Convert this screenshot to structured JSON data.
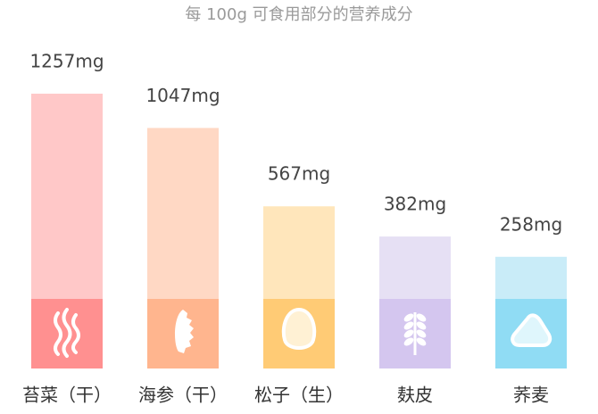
{
  "chart_data": {
    "type": "bar",
    "title": "每 100g 可食用部分的营养成分",
    "categories": [
      "苔菜（干）",
      "海参（干）",
      "松子（生）",
      "麸皮",
      "荞麦"
    ],
    "values": [
      1257,
      1047,
      567,
      382,
      258
    ],
    "value_labels": [
      "1257mg",
      "1047mg",
      "567mg",
      "382mg",
      "258mg"
    ],
    "colors": [
      "#ffc8c8",
      "#ffd8c4",
      "#ffe6bb",
      "#e6e0f4",
      "#c9ecf8"
    ],
    "base_colors": [
      "#ff9090",
      "#ffb58e",
      "#ffcb75",
      "#d4c6ef",
      "#90dcf4"
    ]
  }
}
